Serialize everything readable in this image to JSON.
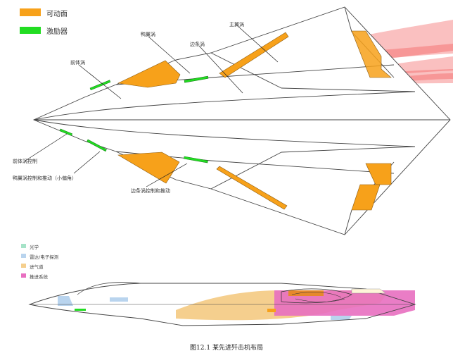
{
  "legend_top": [
    {
      "label": "可动面",
      "color": "#f7a11a"
    },
    {
      "label": "激励器",
      "color": "#22dd22"
    }
  ],
  "callouts": {
    "qianti_wo": "前体涡",
    "ya_yi_wo": "鸭翼涡",
    "bian_tiao_wo": "边条涡",
    "zhu_yi_wo": "主翼涡",
    "qianti_wo_kongzhi": "前体涡控制",
    "ya_yi_wo_kongzhi": "鸭翼涡控制和推动（小偏角）",
    "bian_tiao_wo_kongzhi": "边条涡控制和推动"
  },
  "legend_bottom": [
    {
      "label": "光学",
      "color": "#a6e3c8"
    },
    {
      "label": "雷达/电子探测",
      "color": "#b9d4ee"
    },
    {
      "label": "进气道",
      "color": "#f5cf8e"
    },
    {
      "label": "推进系统",
      "color": "#e86fc0"
    }
  ],
  "caption": "图12.1 某先进歼击机布局",
  "colors": {
    "outline": "#444444",
    "vortex": "#f04a4a",
    "movable": "#f7a11a",
    "actuator": "#22dd22"
  }
}
